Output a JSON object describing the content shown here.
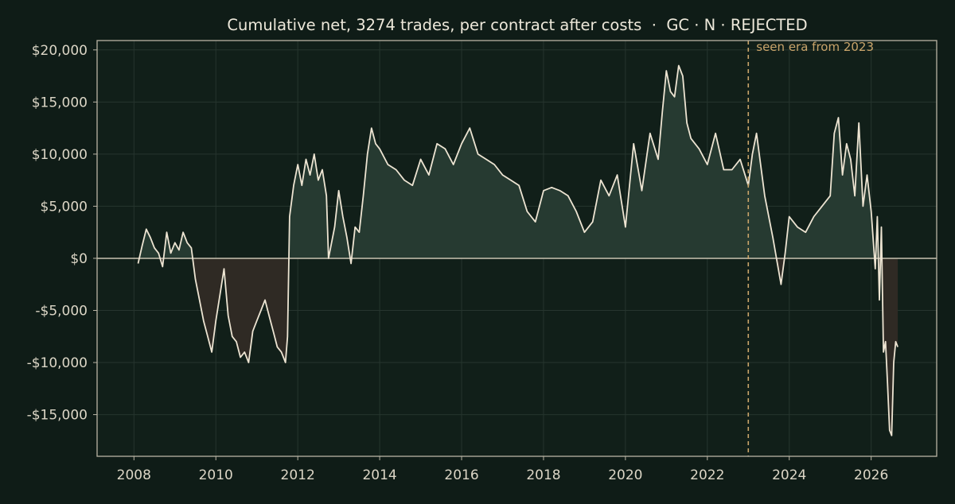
{
  "colors": {
    "background": "#0f1c17",
    "plot_background": "#111f19",
    "axis": "#b9b4a4",
    "text": "#dcd6c6",
    "title": "#ede8da",
    "grid": "#26352e",
    "line": "#ede4d2",
    "positive_fill": "#263a31",
    "negative_fill": "#2f2a24",
    "zero_line": "#c9c3b1",
    "marker": "#c9a46a"
  },
  "chart_data": {
    "type": "line",
    "title": "Cumulative net, 3274 trades, per contract after costs  ·  GC · N · REJECTED",
    "xlabel": "",
    "ylabel": "",
    "xlim": [
      2007.1,
      2027.6
    ],
    "ylim": [
      -19000,
      20900
    ],
    "x_ticks": [
      2008,
      2010,
      2012,
      2014,
      2016,
      2018,
      2020,
      2022,
      2024,
      2026
    ],
    "x_tick_labels": [
      "2008",
      "2010",
      "2012",
      "2014",
      "2016",
      "2018",
      "2020",
      "2022",
      "2024",
      "2026"
    ],
    "y_ticks": [
      -15000,
      -10000,
      -5000,
      0,
      5000,
      10000,
      15000,
      20000
    ],
    "y_tick_labels": [
      "-$15,000",
      "-$10,000",
      "-$5,000",
      "$0",
      "$5,000",
      "$10,000",
      "$15,000",
      "$20,000"
    ],
    "grid": true,
    "fill_positive_negative": true,
    "zero_line": true,
    "vline": {
      "x": 2023.0,
      "label": "seen era from 2023"
    },
    "series": [
      {
        "x": [
          2008.1,
          2008.2,
          2008.3,
          2008.4,
          2008.5,
          2008.6,
          2008.7,
          2008.8,
          2008.9,
          2009.0,
          2009.1,
          2009.2,
          2009.3,
          2009.4,
          2009.5,
          2009.6,
          2009.7,
          2009.8,
          2009.9,
          2010.0,
          2010.1,
          2010.2,
          2010.3,
          2010.4,
          2010.5,
          2010.6,
          2010.7,
          2010.8,
          2010.9,
          2011.0,
          2011.1,
          2011.2,
          2011.3,
          2011.4,
          2011.5,
          2011.6,
          2011.7,
          2011.75,
          2011.8,
          2011.9,
          2012.0,
          2012.1,
          2012.2,
          2012.3,
          2012.4,
          2012.5,
          2012.6,
          2012.7,
          2012.75,
          2012.9,
          2013.0,
          2013.1,
          2013.2,
          2013.3,
          2013.4,
          2013.5,
          2013.6,
          2013.7,
          2013.8,
          2013.9,
          2014.0,
          2014.2,
          2014.4,
          2014.6,
          2014.8,
          2015.0,
          2015.2,
          2015.4,
          2015.6,
          2015.8,
          2016.0,
          2016.2,
          2016.4,
          2016.6,
          2016.8,
          2017.0,
          2017.2,
          2017.4,
          2017.6,
          2017.8,
          2018.0,
          2018.2,
          2018.4,
          2018.6,
          2018.8,
          2019.0,
          2019.2,
          2019.4,
          2019.6,
          2019.8,
          2020.0,
          2020.2,
          2020.4,
          2020.6,
          2020.8,
          2020.9,
          2021.0,
          2021.1,
          2021.2,
          2021.3,
          2021.4,
          2021.5,
          2021.6,
          2021.8,
          2022.0,
          2022.2,
          2022.4,
          2022.6,
          2022.8,
          2023.0,
          2023.1,
          2023.2,
          2023.4,
          2023.6,
          2023.8,
          2023.9,
          2024.0,
          2024.2,
          2024.4,
          2024.6,
          2024.8,
          2025.0,
          2025.1,
          2025.2,
          2025.3,
          2025.4,
          2025.5,
          2025.6,
          2025.7,
          2025.8,
          2025.9,
          2026.0,
          2026.1,
          2026.15,
          2026.2,
          2026.25,
          2026.3,
          2026.35,
          2026.4,
          2026.45,
          2026.5,
          2026.55,
          2026.6,
          2026.65
        ],
        "y": [
          -500,
          1200,
          2800,
          2000,
          1000,
          500,
          -800,
          2500,
          500,
          1500,
          800,
          2500,
          1500,
          1000,
          -2000,
          -4000,
          -6000,
          -7500,
          -9000,
          -6000,
          -3500,
          -1000,
          -5500,
          -7500,
          -8000,
          -9500,
          -9000,
          -10000,
          -7000,
          -6000,
          -5000,
          -4000,
          -5500,
          -7000,
          -8500,
          -9000,
          -10000,
          -7500,
          4000,
          7000,
          9000,
          7000,
          9500,
          8000,
          10000,
          7500,
          8500,
          6000,
          0,
          3000,
          6500,
          4000,
          2000,
          -500,
          3000,
          2500,
          6000,
          10000,
          12500,
          11000,
          10500,
          9000,
          8500,
          7500,
          7000,
          9500,
          8000,
          11000,
          10500,
          9000,
          11000,
          12500,
          10000,
          9500,
          9000,
          8000,
          7500,
          7000,
          4500,
          3500,
          6500,
          6800,
          6500,
          6000,
          4500,
          2500,
          3500,
          7500,
          6000,
          8000,
          3000,
          11000,
          6500,
          12000,
          9500,
          14000,
          18000,
          16000,
          15500,
          18500,
          17500,
          13000,
          11500,
          10500,
          9000,
          12000,
          8500,
          8500,
          9500,
          7000,
          10000,
          12000,
          6000,
          2000,
          -2500,
          500,
          4000,
          3000,
          2500,
          4000,
          5000,
          6000,
          12000,
          13500,
          8000,
          11000,
          9500,
          6000,
          13000,
          5000,
          8000,
          4500,
          -1000,
          4000,
          -4000,
          3000,
          -9000,
          -8000,
          -12000,
          -16500,
          -17000,
          -10000,
          -8000,
          -8500
        ]
      }
    ]
  }
}
